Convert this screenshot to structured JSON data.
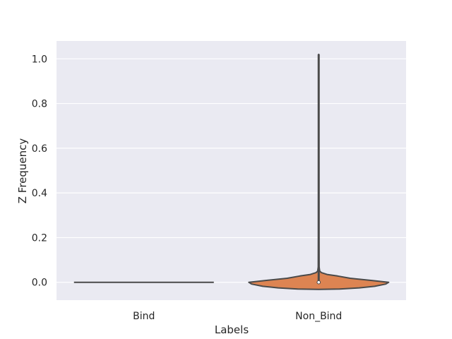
{
  "chart_data": {
    "type": "violin",
    "title": "",
    "xlabel": "Labels",
    "ylabel": "Z Frequency",
    "categories": [
      "Bind",
      "Non_Bind"
    ],
    "ylim": [
      -0.08,
      1.08
    ],
    "yticks": [
      0.0,
      0.2,
      0.4,
      0.6,
      0.8,
      1.0
    ],
    "ytick_labels": [
      "0.0",
      "0.2",
      "0.4",
      "0.6",
      "0.8",
      "1.0"
    ],
    "grid": true,
    "background": "#eaeaf2",
    "grid_color": "#ffffff",
    "line_color": "#4a4a4a",
    "violins": [
      {
        "category": "Bind",
        "color": "#4c72b0",
        "min": 0.0,
        "max": 0.0,
        "median": 0.0,
        "profile": [
          [
            0.0,
            1.0
          ]
        ]
      },
      {
        "category": "Non_Bind",
        "color": "#dd8452",
        "min": 0.0,
        "max": 1.02,
        "median": 0.0,
        "profile": [
          [
            -0.032,
            0.0
          ],
          [
            -0.03,
            0.3
          ],
          [
            -0.025,
            0.58
          ],
          [
            -0.018,
            0.8
          ],
          [
            -0.008,
            0.96
          ],
          [
            0.0,
            1.0
          ],
          [
            0.008,
            0.77
          ],
          [
            0.018,
            0.45
          ],
          [
            0.028,
            0.27
          ],
          [
            0.035,
            0.12
          ],
          [
            0.043,
            0.04
          ],
          [
            0.05,
            0.015
          ],
          [
            0.07,
            0.006
          ],
          [
            0.2,
            0.004
          ],
          [
            0.6,
            0.003
          ],
          [
            1.02,
            0.002
          ]
        ]
      }
    ]
  }
}
